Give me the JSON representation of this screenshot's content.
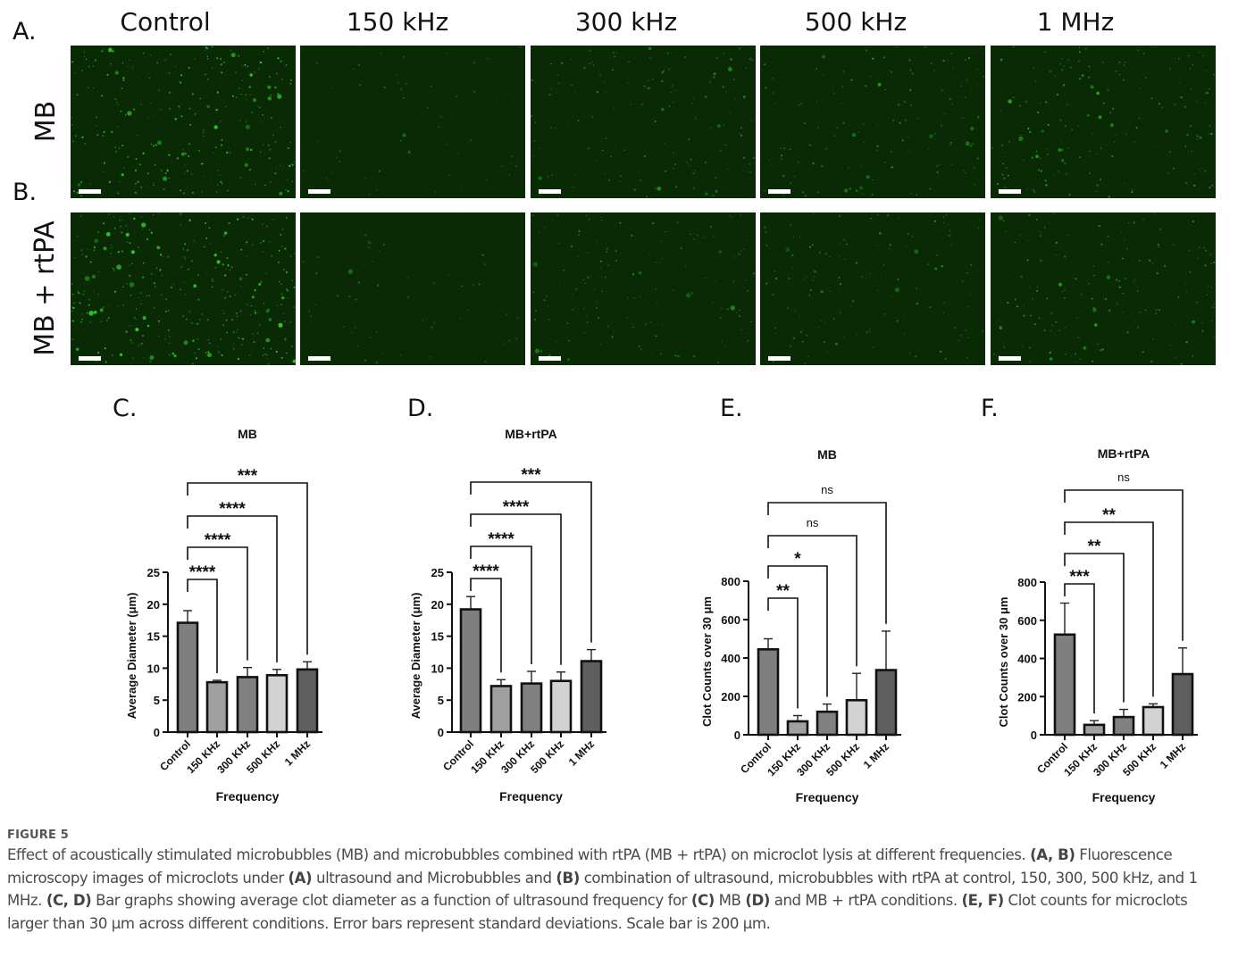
{
  "figure": {
    "panel_labels": {
      "A": "A.",
      "B": "B.",
      "C": "C.",
      "D": "D.",
      "E": "E.",
      "F": "F."
    },
    "column_headers": [
      "Control",
      "150 kHz",
      "300 kHz",
      "500 kHz",
      "1 MHz"
    ],
    "row_labels": [
      "MB",
      "MB + rtPA"
    ],
    "micrograph_colors": {
      "background": "#0a2a06",
      "particle": "#2fd42a",
      "scale_bar": "#ffffff"
    },
    "bar_colors": [
      "#7f7f7f",
      "#a0a0a0",
      "#808080",
      "#d2d2d2",
      "#5e5e5e"
    ]
  },
  "chart_data": [
    {
      "panel": "C",
      "type": "bar",
      "title": "MB",
      "xlabel": "Frequency",
      "ylabel": "Average Diameter (μm)",
      "categories": [
        "Control",
        "150 KHz",
        "300 KHz",
        "500 KHz",
        "1 MHz"
      ],
      "values": [
        17.1,
        7.8,
        8.6,
        8.9,
        9.8
      ],
      "errors": [
        1.9,
        0.3,
        1.5,
        0.9,
        1.2
      ],
      "ylim": [
        0,
        25
      ],
      "yticks": [
        "0",
        "5",
        "10",
        "15",
        "20",
        "25"
      ],
      "ytick_values": [
        0,
        5,
        10,
        15,
        20,
        25
      ],
      "significance": [
        {
          "from": "Control",
          "to": "150 KHz",
          "label": "****"
        },
        {
          "from": "Control",
          "to": "300 KHz",
          "label": "****"
        },
        {
          "from": "Control",
          "to": "500 KHz",
          "label": "****"
        },
        {
          "from": "Control",
          "to": "1 MHz",
          "label": "***"
        }
      ]
    },
    {
      "panel": "D",
      "type": "bar",
      "title": "MB+rtPA",
      "xlabel": "Frequency",
      "ylabel": "Average Diameter (μm)",
      "categories": [
        "Control",
        "150 KHz",
        "300 KHz",
        "500 KHz",
        "1 MHz"
      ],
      "values": [
        19.2,
        7.2,
        7.6,
        8.0,
        11.1
      ],
      "errors": [
        2.0,
        1.0,
        1.9,
        1.4,
        1.8
      ],
      "ylim": [
        0,
        25
      ],
      "yticks": [
        "0",
        "5",
        "10",
        "15",
        "20",
        "25"
      ],
      "ytick_values": [
        0,
        5,
        10,
        15,
        20,
        25
      ],
      "significance": [
        {
          "from": "Control",
          "to": "150 KHz",
          "label": "****"
        },
        {
          "from": "Control",
          "to": "300 KHz",
          "label": "****"
        },
        {
          "from": "Control",
          "to": "500 KHz",
          "label": "****"
        },
        {
          "from": "Control",
          "to": "1 MHz",
          "label": "***"
        }
      ]
    },
    {
      "panel": "E",
      "type": "bar",
      "title": "MB",
      "xlabel": "Frequency",
      "ylabel": "Clot Counts over 30 μm",
      "categories": [
        "Control",
        "150 KHz",
        "300 KHz",
        "500 KHz",
        "1 MHz"
      ],
      "values": [
        445,
        70,
        120,
        180,
        337
      ],
      "errors": [
        55,
        30,
        40,
        140,
        203
      ],
      "ylim": [
        0,
        800
      ],
      "yticks": [
        "0",
        "200",
        "400",
        "600",
        "800"
      ],
      "ytick_values": [
        0,
        200,
        400,
        600,
        800
      ],
      "significance": [
        {
          "from": "Control",
          "to": "150 KHz",
          "label": "**"
        },
        {
          "from": "Control",
          "to": "300 KHz",
          "label": "*"
        },
        {
          "from": "Control",
          "to": "500 KHz",
          "label": "ns"
        },
        {
          "from": "Control",
          "to": "1 MHz",
          "label": "ns"
        }
      ]
    },
    {
      "panel": "F",
      "type": "bar",
      "title": "MB+rtPA",
      "xlabel": "Frequency",
      "ylabel": "Clot Counts over 30 μm",
      "categories": [
        "Control",
        "150 KHz",
        "300 KHz",
        "500 KHz",
        "1 MHz"
      ],
      "values": [
        525,
        52,
        93,
        145,
        318
      ],
      "errors": [
        165,
        22,
        40,
        17,
        137
      ],
      "ylim": [
        0,
        800
      ],
      "yticks": [
        "0",
        "200",
        "400",
        "600",
        "800"
      ],
      "ytick_values": [
        0,
        200,
        400,
        600,
        800
      ],
      "significance": [
        {
          "from": "Control",
          "to": "150 KHz",
          "label": "***"
        },
        {
          "from": "Control",
          "to": "300 KHz",
          "label": "**"
        },
        {
          "from": "Control",
          "to": "500 KHz",
          "label": "**"
        },
        {
          "from": "Control",
          "to": "1 MHz",
          "label": "ns"
        }
      ]
    }
  ],
  "caption": {
    "figure_number": "FIGURE 5",
    "segments": [
      {
        "t": "Effect of acoustically stimulated microbubbles (MB) and microbubbles combined with rtPA (MB + rtPA) on microclot lysis at different frequencies. ",
        "b": false
      },
      {
        "t": "(A, B)",
        "b": true
      },
      {
        "t": " Fluorescence microscopy images of microclots under ",
        "b": false
      },
      {
        "t": "(A)",
        "b": true
      },
      {
        "t": " ultrasound and Microbubbles and ",
        "b": false
      },
      {
        "t": "(B)",
        "b": true
      },
      {
        "t": " combination of ultrasound, microbubbles with rtPA at control, 150, 300, 500 kHz, and 1 MHz. ",
        "b": false
      },
      {
        "t": "(C, D)",
        "b": true
      },
      {
        "t": " Bar graphs showing average clot diameter as a function of ultrasound frequency for ",
        "b": false
      },
      {
        "t": "(C)",
        "b": true
      },
      {
        "t": " MB ",
        "b": false
      },
      {
        "t": "(D)",
        "b": true
      },
      {
        "t": " and MB + rtPA conditions. ",
        "b": false
      },
      {
        "t": "(E, F)",
        "b": true
      },
      {
        "t": " Clot counts for microclots larger than 30 μm across different conditions. Error bars represent standard deviations. Scale bar is 200 μm.",
        "b": false
      }
    ]
  }
}
